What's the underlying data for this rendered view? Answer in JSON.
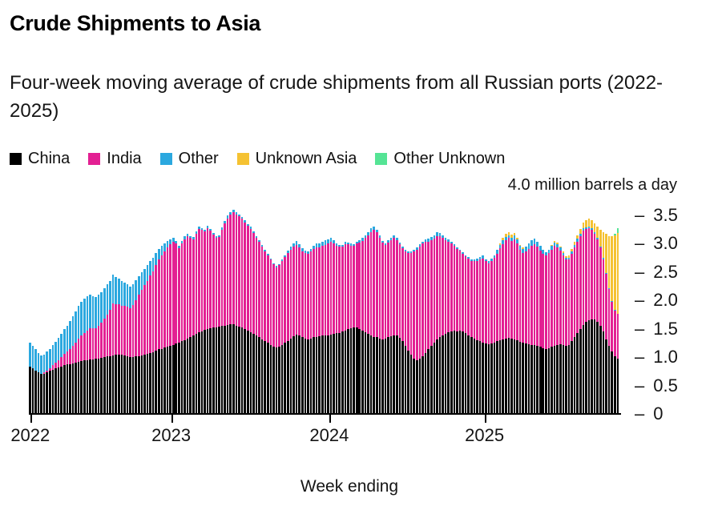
{
  "title": "Crude Shipments to Asia",
  "subtitle": "Four-week moving average of crude shipments from all Russian ports (2022-2025)",
  "legend": [
    {
      "label": "China",
      "color": "#000000"
    },
    {
      "label": "India",
      "color": "#e32093"
    },
    {
      "label": "Other",
      "color": "#2ba8df"
    },
    {
      "label": "Unknown Asia",
      "color": "#f5c232"
    },
    {
      "label": "Other Unknown",
      "color": "#55e495"
    }
  ],
  "axis": {
    "unit_label": "4.0 million barrels a day",
    "x_label": "Week ending",
    "y_ticks": [
      {
        "label": "3.5",
        "value": 3.5
      },
      {
        "label": "3.0",
        "value": 3.0
      },
      {
        "label": "2.5",
        "value": 2.5
      },
      {
        "label": "2.0",
        "value": 2.0
      },
      {
        "label": "1.5",
        "value": 1.5
      },
      {
        "label": "1.0",
        "value": 1.0
      },
      {
        "label": "0.5",
        "value": 0.5
      },
      {
        "label": "0",
        "value": 0
      }
    ],
    "x_ticks": [
      {
        "label": "2022",
        "week_index": 0
      },
      {
        "label": "2023",
        "week_index": 49
      },
      {
        "label": "2024",
        "week_index": 104
      },
      {
        "label": "2025",
        "week_index": 158
      }
    ]
  },
  "chart_data": {
    "type": "bar",
    "stacked": true,
    "title": "Crude Shipments to Asia",
    "subtitle": "Four-week moving average of crude shipments from all Russian ports (2022-2025)",
    "ylabel": "million barrels a day",
    "xlabel": "Week ending",
    "ylim": [
      0,
      4.0
    ],
    "x_range": "weekly bars, Jan 2022 - Nov 2025",
    "series_names": [
      "China",
      "India",
      "Other",
      "Unknown Asia",
      "Other Unknown"
    ],
    "weeks_are": "[China, India, Other, UnknownAsia, OtherUnknown] in million barrels a day",
    "weeks": [
      [
        0.83,
        0,
        0.42,
        0,
        0
      ],
      [
        0.8,
        0,
        0.4,
        0,
        0
      ],
      [
        0.76,
        0,
        0.38,
        0,
        0
      ],
      [
        0.73,
        0,
        0.34,
        0,
        0
      ],
      [
        0.7,
        0,
        0.33,
        0,
        0
      ],
      [
        0.71,
        0.02,
        0.32,
        0,
        0
      ],
      [
        0.74,
        0.03,
        0.33,
        0,
        0
      ],
      [
        0.76,
        0.05,
        0.34,
        0,
        0
      ],
      [
        0.78,
        0.08,
        0.35,
        0,
        0
      ],
      [
        0.8,
        0.1,
        0.37,
        0,
        0
      ],
      [
        0.82,
        0.13,
        0.39,
        0,
        0
      ],
      [
        0.84,
        0.16,
        0.41,
        0,
        0
      ],
      [
        0.86,
        0.2,
        0.43,
        0,
        0
      ],
      [
        0.87,
        0.23,
        0.46,
        0,
        0
      ],
      [
        0.88,
        0.27,
        0.49,
        0,
        0
      ],
      [
        0.89,
        0.31,
        0.52,
        0,
        0
      ],
      [
        0.9,
        0.36,
        0.55,
        0,
        0
      ],
      [
        0.92,
        0.41,
        0.57,
        0,
        0
      ],
      [
        0.93,
        0.45,
        0.59,
        0,
        0
      ],
      [
        0.94,
        0.49,
        0.6,
        0,
        0
      ],
      [
        0.95,
        0.52,
        0.6,
        0,
        0
      ],
      [
        0.96,
        0.55,
        0.59,
        0,
        0
      ],
      [
        0.96,
        0.55,
        0.57,
        0,
        0
      ],
      [
        0.97,
        0.54,
        0.55,
        0,
        0
      ],
      [
        0.98,
        0.57,
        0.55,
        0,
        0
      ],
      [
        0.99,
        0.62,
        0.54,
        0,
        0
      ],
      [
        1.0,
        0.68,
        0.53,
        0,
        0
      ],
      [
        1.01,
        0.74,
        0.53,
        0,
        0
      ],
      [
        1.02,
        0.81,
        0.52,
        0,
        0
      ],
      [
        1.03,
        0.92,
        0.5,
        0,
        0
      ],
      [
        1.04,
        0.9,
        0.48,
        0,
        0
      ],
      [
        1.05,
        0.88,
        0.46,
        0,
        0
      ],
      [
        1.05,
        0.86,
        0.44,
        0,
        0
      ],
      [
        1.03,
        0.87,
        0.42,
        0,
        0
      ],
      [
        1.01,
        0.88,
        0.4,
        0,
        0
      ],
      [
        1.0,
        0.87,
        0.38,
        0,
        0
      ],
      [
        1.0,
        0.92,
        0.37,
        0,
        0
      ],
      [
        1.01,
        0.99,
        0.35,
        0,
        0
      ],
      [
        1.02,
        1.08,
        0.33,
        0,
        0
      ],
      [
        1.03,
        1.16,
        0.31,
        0,
        0
      ],
      [
        1.05,
        1.22,
        0.29,
        0,
        0
      ],
      [
        1.06,
        1.29,
        0.27,
        0,
        0
      ],
      [
        1.08,
        1.36,
        0.25,
        0,
        0
      ],
      [
        1.09,
        1.43,
        0.23,
        0,
        0
      ],
      [
        1.12,
        1.5,
        0.21,
        0,
        0
      ],
      [
        1.14,
        1.58,
        0.18,
        0,
        0
      ],
      [
        1.15,
        1.65,
        0.16,
        0,
        0
      ],
      [
        1.17,
        1.7,
        0.14,
        0,
        0
      ],
      [
        1.18,
        1.75,
        0.12,
        0,
        0
      ],
      [
        1.2,
        1.8,
        0.08,
        0,
        0
      ],
      [
        1.22,
        1.82,
        0.06,
        0,
        0
      ],
      [
        1.24,
        1.76,
        0.05,
        0,
        0
      ],
      [
        1.26,
        1.66,
        0.04,
        0,
        0
      ],
      [
        1.28,
        1.72,
        0.05,
        0,
        0
      ],
      [
        1.3,
        1.78,
        0.06,
        0,
        0
      ],
      [
        1.33,
        1.8,
        0.05,
        0,
        0
      ],
      [
        1.36,
        1.74,
        0.04,
        0,
        0
      ],
      [
        1.38,
        1.7,
        0.04,
        0,
        0
      ],
      [
        1.41,
        1.76,
        0.05,
        0,
        0
      ],
      [
        1.44,
        1.82,
        0.04,
        0,
        0
      ],
      [
        1.46,
        1.78,
        0.03,
        0,
        0
      ],
      [
        1.48,
        1.74,
        0.03,
        0,
        0
      ],
      [
        1.5,
        1.78,
        0.04,
        0,
        0
      ],
      [
        1.51,
        1.72,
        0.03,
        0,
        0
      ],
      [
        1.52,
        1.64,
        0.03,
        0,
        0
      ],
      [
        1.53,
        1.58,
        0.02,
        0,
        0
      ],
      [
        1.54,
        1.58,
        0.03,
        0,
        0
      ],
      [
        1.55,
        1.7,
        0.04,
        0,
        0
      ],
      [
        1.56,
        1.8,
        0.04,
        0,
        0
      ],
      [
        1.57,
        1.88,
        0.05,
        0,
        0
      ],
      [
        1.58,
        1.93,
        0.04,
        0,
        0
      ],
      [
        1.58,
        1.97,
        0.05,
        0,
        0
      ],
      [
        1.56,
        1.96,
        0.04,
        0,
        0
      ],
      [
        1.54,
        1.94,
        0.03,
        0,
        0
      ],
      [
        1.52,
        1.92,
        0.03,
        0,
        0
      ],
      [
        1.5,
        1.88,
        0.03,
        0,
        0
      ],
      [
        1.47,
        1.85,
        0.03,
        0,
        0
      ],
      [
        1.44,
        1.82,
        0.04,
        0,
        0
      ],
      [
        1.41,
        1.78,
        0.03,
        0,
        0
      ],
      [
        1.38,
        1.73,
        0.03,
        0,
        0
      ],
      [
        1.35,
        1.68,
        0.03,
        0,
        0
      ],
      [
        1.31,
        1.64,
        0.03,
        0,
        0
      ],
      [
        1.28,
        1.59,
        0.03,
        0,
        0
      ],
      [
        1.25,
        1.54,
        0.03,
        0,
        0
      ],
      [
        1.22,
        1.5,
        0.02,
        0,
        0
      ],
      [
        1.19,
        1.45,
        0.02,
        0,
        0
      ],
      [
        1.17,
        1.42,
        0.02,
        0,
        0
      ],
      [
        1.18,
        1.44,
        0.02,
        0,
        0
      ],
      [
        1.21,
        1.48,
        0.03,
        0,
        0
      ],
      [
        1.25,
        1.52,
        0.03,
        0,
        0
      ],
      [
        1.29,
        1.55,
        0.04,
        0,
        0
      ],
      [
        1.33,
        1.57,
        0.05,
        0,
        0
      ],
      [
        1.37,
        1.58,
        0.06,
        0,
        0
      ],
      [
        1.4,
        1.58,
        0.07,
        0,
        0
      ],
      [
        1.38,
        1.55,
        0.06,
        0,
        0
      ],
      [
        1.35,
        1.52,
        0.05,
        0,
        0
      ],
      [
        1.33,
        1.51,
        0.04,
        0,
        0
      ],
      [
        1.32,
        1.5,
        0.04,
        0,
        0
      ],
      [
        1.33,
        1.53,
        0.05,
        0,
        0
      ],
      [
        1.35,
        1.56,
        0.05,
        0,
        0
      ],
      [
        1.36,
        1.58,
        0.06,
        0,
        0
      ],
      [
        1.37,
        1.57,
        0.06,
        0,
        0
      ],
      [
        1.38,
        1.58,
        0.07,
        0,
        0
      ],
      [
        1.38,
        1.6,
        0.08,
        0,
        0
      ],
      [
        1.39,
        1.62,
        0.07,
        0,
        0
      ],
      [
        1.4,
        1.64,
        0.06,
        0,
        0
      ],
      [
        1.41,
        1.6,
        0.05,
        0,
        0
      ],
      [
        1.42,
        1.55,
        0.04,
        0,
        0
      ],
      [
        1.43,
        1.52,
        0.03,
        0,
        0
      ],
      [
        1.45,
        1.5,
        0.03,
        0,
        0
      ],
      [
        1.47,
        1.52,
        0.04,
        0,
        0
      ],
      [
        1.49,
        1.5,
        0.03,
        0,
        0
      ],
      [
        1.51,
        1.46,
        0.03,
        0,
        0
      ],
      [
        1.53,
        1.44,
        0.03,
        0,
        0
      ],
      [
        1.52,
        1.48,
        0.04,
        0,
        0
      ],
      [
        1.5,
        1.52,
        0.04,
        0,
        0
      ],
      [
        1.47,
        1.58,
        0.05,
        0,
        0
      ],
      [
        1.44,
        1.66,
        0.05,
        0,
        0
      ],
      [
        1.41,
        1.74,
        0.06,
        0,
        0
      ],
      [
        1.38,
        1.83,
        0.07,
        0,
        0
      ],
      [
        1.36,
        1.88,
        0.06,
        0,
        0
      ],
      [
        1.35,
        1.85,
        0.05,
        0,
        0
      ],
      [
        1.33,
        1.78,
        0.04,
        0,
        0
      ],
      [
        1.32,
        1.7,
        0.03,
        0,
        0
      ],
      [
        1.33,
        1.65,
        0.03,
        0,
        0
      ],
      [
        1.35,
        1.67,
        0.04,
        0,
        0
      ],
      [
        1.37,
        1.69,
        0.04,
        0,
        0
      ],
      [
        1.39,
        1.71,
        0.05,
        0,
        0
      ],
      [
        1.38,
        1.68,
        0.04,
        0,
        0
      ],
      [
        1.34,
        1.65,
        0.03,
        0,
        0
      ],
      [
        1.28,
        1.64,
        0.03,
        0,
        0
      ],
      [
        1.2,
        1.66,
        0.03,
        0,
        0
      ],
      [
        1.12,
        1.72,
        0.03,
        0,
        0
      ],
      [
        1.04,
        1.8,
        0.03,
        0,
        0
      ],
      [
        0.98,
        1.88,
        0.03,
        0,
        0
      ],
      [
        0.95,
        1.95,
        0.03,
        0,
        0
      ],
      [
        0.97,
        1.98,
        0.04,
        0,
        0
      ],
      [
        1.02,
        1.98,
        0.04,
        0,
        0
      ],
      [
        1.08,
        1.95,
        0.05,
        0,
        0
      ],
      [
        1.14,
        1.9,
        0.05,
        0,
        0
      ],
      [
        1.2,
        1.86,
        0.06,
        0,
        0
      ],
      [
        1.26,
        1.83,
        0.06,
        0,
        0
      ],
      [
        1.31,
        1.82,
        0.07,
        0,
        0
      ],
      [
        1.35,
        1.78,
        0.06,
        0,
        0
      ],
      [
        1.38,
        1.72,
        0.05,
        0,
        0
      ],
      [
        1.41,
        1.66,
        0.04,
        0,
        0
      ],
      [
        1.44,
        1.6,
        0.04,
        0,
        0
      ],
      [
        1.46,
        1.54,
        0.03,
        0,
        0
      ],
      [
        1.47,
        1.49,
        0.03,
        0,
        0
      ],
      [
        1.46,
        1.45,
        0.03,
        0,
        0
      ],
      [
        1.47,
        1.41,
        0.02,
        0,
        0
      ],
      [
        1.45,
        1.38,
        0.02,
        0,
        0
      ],
      [
        1.42,
        1.36,
        0.02,
        0,
        0
      ],
      [
        1.39,
        1.35,
        0.02,
        0,
        0
      ],
      [
        1.36,
        1.34,
        0.02,
        0,
        0
      ],
      [
        1.33,
        1.36,
        0.03,
        0,
        0
      ],
      [
        1.3,
        1.4,
        0.04,
        0,
        0
      ],
      [
        1.28,
        1.45,
        0.04,
        0,
        0
      ],
      [
        1.26,
        1.48,
        0.05,
        0,
        0
      ],
      [
        1.24,
        1.45,
        0.04,
        0,
        0
      ],
      [
        1.23,
        1.42,
        0.04,
        0,
        0
      ],
      [
        1.24,
        1.45,
        0.05,
        0,
        0
      ],
      [
        1.26,
        1.49,
        0.05,
        0,
        0
      ],
      [
        1.28,
        1.55,
        0.06,
        0,
        0
      ],
      [
        1.3,
        1.62,
        0.06,
        0.02,
        0
      ],
      [
        1.32,
        1.68,
        0.06,
        0.04,
        0
      ],
      [
        1.33,
        1.73,
        0.06,
        0.05,
        0
      ],
      [
        1.34,
        1.76,
        0.05,
        0.06,
        0
      ],
      [
        1.33,
        1.72,
        0.06,
        0.05,
        0
      ],
      [
        1.32,
        1.76,
        0.07,
        0.04,
        0
      ],
      [
        1.3,
        1.7,
        0.08,
        0.03,
        0
      ],
      [
        1.27,
        1.62,
        0.07,
        0.02,
        0
      ],
      [
        1.25,
        1.58,
        0.08,
        0.02,
        0
      ],
      [
        1.24,
        1.62,
        0.09,
        0,
        0
      ],
      [
        1.23,
        1.68,
        0.1,
        0,
        0
      ],
      [
        1.22,
        1.74,
        0.11,
        0,
        0
      ],
      [
        1.21,
        1.78,
        0.1,
        0,
        0
      ],
      [
        1.2,
        1.75,
        0.09,
        0,
        0
      ],
      [
        1.18,
        1.7,
        0.08,
        0,
        0
      ],
      [
        1.16,
        1.66,
        0.07,
        0,
        0
      ],
      [
        1.15,
        1.64,
        0.06,
        0,
        0
      ],
      [
        1.16,
        1.68,
        0.06,
        0,
        0
      ],
      [
        1.18,
        1.72,
        0.06,
        0.02,
        0
      ],
      [
        1.2,
        1.76,
        0.06,
        0.03,
        0
      ],
      [
        1.22,
        1.72,
        0.05,
        0.03,
        0
      ],
      [
        1.23,
        1.65,
        0.05,
        0.02,
        0
      ],
      [
        1.22,
        1.58,
        0.04,
        0.02,
        0
      ],
      [
        1.2,
        1.52,
        0.04,
        0.02,
        0
      ],
      [
        1.22,
        1.5,
        0.04,
        0.03,
        0
      ],
      [
        1.28,
        1.54,
        0.05,
        0.04,
        0
      ],
      [
        1.35,
        1.58,
        0.05,
        0.05,
        0
      ],
      [
        1.42,
        1.62,
        0.05,
        0.06,
        0
      ],
      [
        1.5,
        1.64,
        0.04,
        0.08,
        0
      ],
      [
        1.57,
        1.66,
        0.04,
        0.1,
        0
      ],
      [
        1.62,
        1.64,
        0.03,
        0.12,
        0
      ],
      [
        1.65,
        1.62,
        0.03,
        0.15,
        0
      ],
      [
        1.67,
        1.58,
        0.02,
        0.14,
        0
      ],
      [
        1.66,
        1.52,
        0.02,
        0.16,
        0
      ],
      [
        1.62,
        1.46,
        0.02,
        0.2,
        0
      ],
      [
        1.55,
        1.38,
        0.02,
        0.3,
        0
      ],
      [
        1.45,
        1.28,
        0.02,
        0.45,
        0
      ],
      [
        1.32,
        1.15,
        0.02,
        0.68,
        0
      ],
      [
        1.2,
        1.0,
        0.02,
        0.92,
        0
      ],
      [
        1.1,
        0.88,
        0.01,
        1.15,
        0
      ],
      [
        1.02,
        0.8,
        0.01,
        1.32,
        0.03
      ],
      [
        0.98,
        0.78,
        0.01,
        1.42,
        0.08
      ]
    ]
  }
}
